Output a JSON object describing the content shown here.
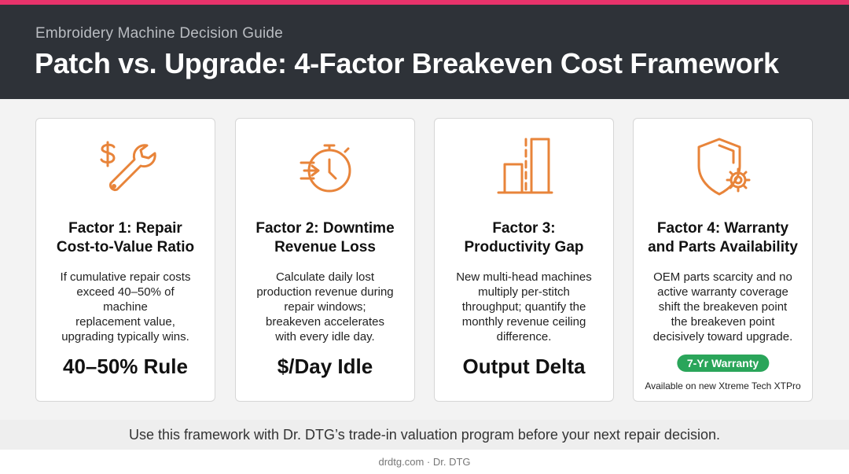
{
  "header": {
    "subtitle": "Embroidery Machine Decision Guide",
    "title": "Patch vs. Upgrade: 4-Factor Breakeven Cost Framework"
  },
  "colors": {
    "accent": "#e8336b",
    "header_bg": "#2e3238",
    "icon_stroke": "#e8843a",
    "badge_green": "#2aa55a"
  },
  "cards": [
    {
      "icon": "dollar-wrench-icon",
      "heading_line1": "Factor 1: Repair",
      "heading_line2": "Cost-to-Value Ratio",
      "desc_lines": [
        "If cumulative repair costs",
        "exceed 40–50% of",
        "machine",
        "replacement value,",
        "upgrading typically wins."
      ],
      "metric": "40–50% Rule"
    },
    {
      "icon": "stopwatch-icon",
      "heading_line1": "Factor 2: Downtime",
      "heading_line2": "Revenue Loss",
      "desc_lines": [
        "Calculate daily lost",
        "production revenue during",
        "repair windows;",
        "breakeven accelerates",
        "with every idle day."
      ],
      "metric": "$/Day Idle"
    },
    {
      "icon": "bar-chart-icon",
      "heading_line1": "Factor 3:",
      "heading_line2": "Productivity Gap",
      "desc_lines": [
        "New multi-head machines",
        "multiply per-stitch",
        "throughput; quantify the",
        "monthly revenue ceiling",
        "difference."
      ],
      "metric": "Output Delta"
    },
    {
      "icon": "shield-gear-icon",
      "heading_line1": "Factor 4: Warranty",
      "heading_line2": "and Parts Availability",
      "desc_lines": [
        "OEM parts scarcity and no",
        "active warranty coverage",
        "shift the breakeven point",
        "the breakeven point",
        "decisively toward upgrade."
      ],
      "badge": "7-Yr Warranty",
      "badge_note": "Available on new Xtreme Tech XTPro"
    }
  ],
  "cta": "Use this framework with Dr. DTG’s trade-in valuation program before your next repair decision.",
  "footer": "drdtg.com · Dr. DTG"
}
